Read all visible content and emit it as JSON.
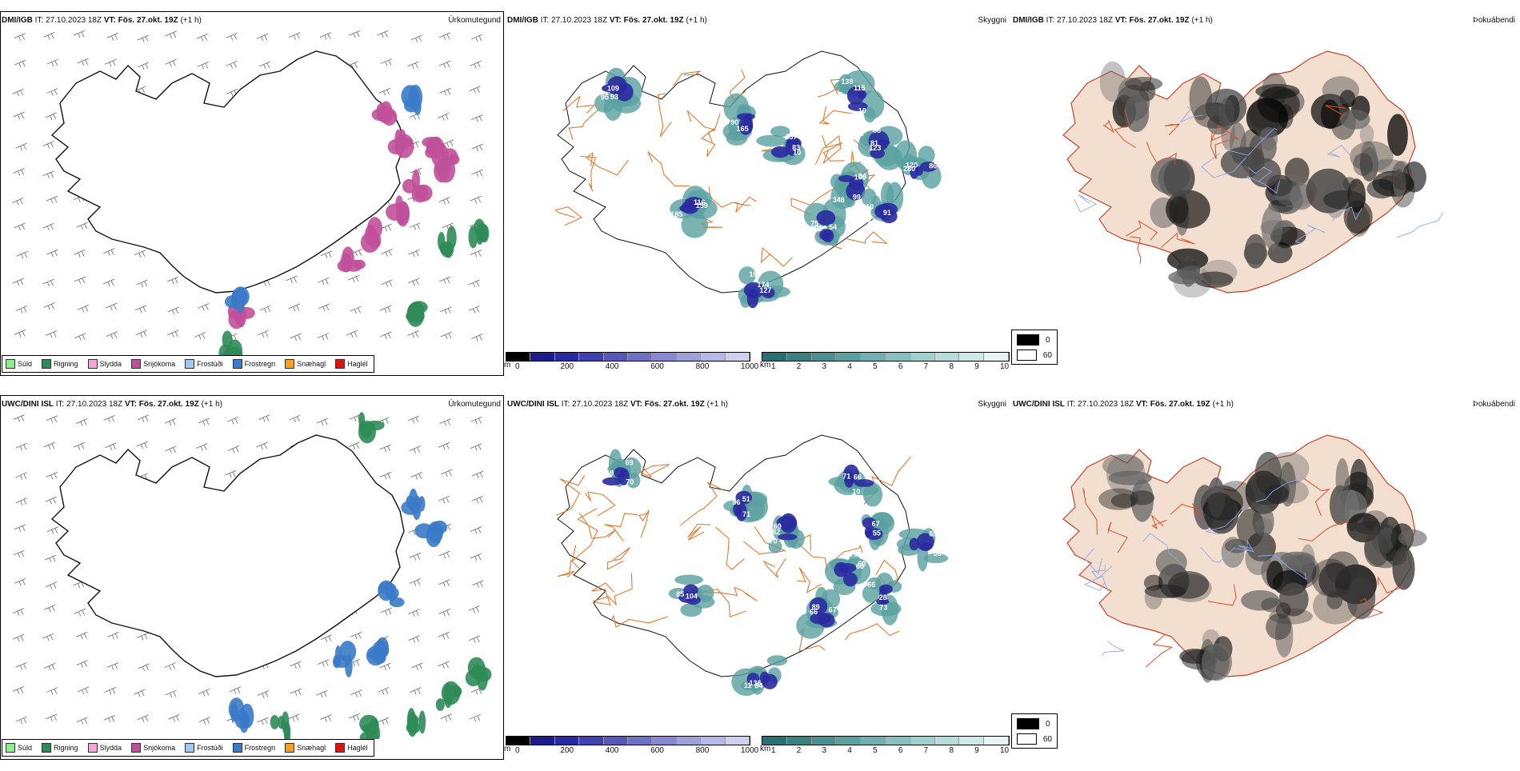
{
  "rows": [
    {
      "model": "DMI/IGB",
      "it_label": "IT:",
      "it_value": "27.10.2023 18Z",
      "vt_label": "VT:",
      "vt_value": "Fös. 27.okt. 19Z",
      "offset": "(+1 h)",
      "panel1_title": "Úrkomutegund",
      "panel2_title": "Skyggni",
      "panel3_title": "Þokuábendi",
      "visibility_labels": [
        "138",
        "88",
        "106",
        "54",
        "91",
        "137",
        "90",
        "93",
        "127",
        "116",
        "280",
        "102",
        "278",
        "348",
        "75",
        "110",
        "10",
        "165",
        "109",
        "174",
        "185",
        "120",
        "115",
        "123",
        "94",
        "58",
        "393",
        "83",
        "44",
        "95",
        "198",
        "159",
        "86",
        "10",
        "81",
        "99",
        "102"
      ],
      "fog_legend": [
        "0",
        "60"
      ]
    },
    {
      "model": "UWC/DINI ISL",
      "it_label": "IT:",
      "it_value": "27.10.2023 18Z",
      "vt_label": "VT:",
      "vt_value": "Fös. 27.okt. 19Z",
      "offset": "(+1 h)",
      "panel1_title": "Úrkomutegund",
      "panel2_title": "Skyggni",
      "panel3_title": "Þokuábendi",
      "visibility_labels": [
        "71",
        "55",
        "71",
        "89",
        "66",
        "69",
        "96",
        "119",
        "84",
        "104",
        "38",
        "10",
        "67",
        "60",
        "67",
        "73",
        "82",
        "51",
        "70",
        "136",
        "85",
        "65",
        "66",
        "68",
        "68",
        "66",
        "28",
        "70",
        "71",
        "69",
        "11"
      ],
      "fog_legend": [
        "0",
        "60"
      ]
    }
  ],
  "precip_legend": [
    {
      "label": "Súld",
      "color": "#90ee90"
    },
    {
      "label": "Rigning",
      "color": "#2e8b57"
    },
    {
      "label": "Slydda",
      "color": "#f4a6d7"
    },
    {
      "label": "Snjókoma",
      "color": "#c0509a"
    },
    {
      "label": "Frostúði",
      "color": "#9ec9f0"
    },
    {
      "label": "Frostregn",
      "color": "#3a7bc8"
    },
    {
      "label": "Snæhagl",
      "color": "#f5a020"
    },
    {
      "label": "Haglél",
      "color": "#e01010"
    }
  ],
  "vis_m_scale": {
    "unit": "m",
    "ticks": [
      "0",
      "200",
      "400",
      "600",
      "800",
      "1000"
    ],
    "colors": [
      "#000000",
      "#1c1c8c",
      "#2a2aa0",
      "#4040b0",
      "#5858bc",
      "#7070c6",
      "#8888d0",
      "#a0a0da",
      "#b8b8e4",
      "#d0d0ee"
    ]
  },
  "vis_km_scale": {
    "unit": "km",
    "ticks": [
      "1",
      "2",
      "3",
      "4",
      "5",
      "6",
      "7",
      "8",
      "9",
      "10"
    ],
    "colors": [
      "#2a7070",
      "#3a8080",
      "#4a9090",
      "#5aa0a0",
      "#70b0b0",
      "#88c0c0",
      "#a0d0d0",
      "#b8dcdc",
      "#d0e8e8",
      "#e8f4f4"
    ]
  },
  "map_colors": {
    "coast": "#111111",
    "roads": "#e07a30",
    "fog_land": "#f3dfcf",
    "rivers": "#8ea8f0"
  }
}
